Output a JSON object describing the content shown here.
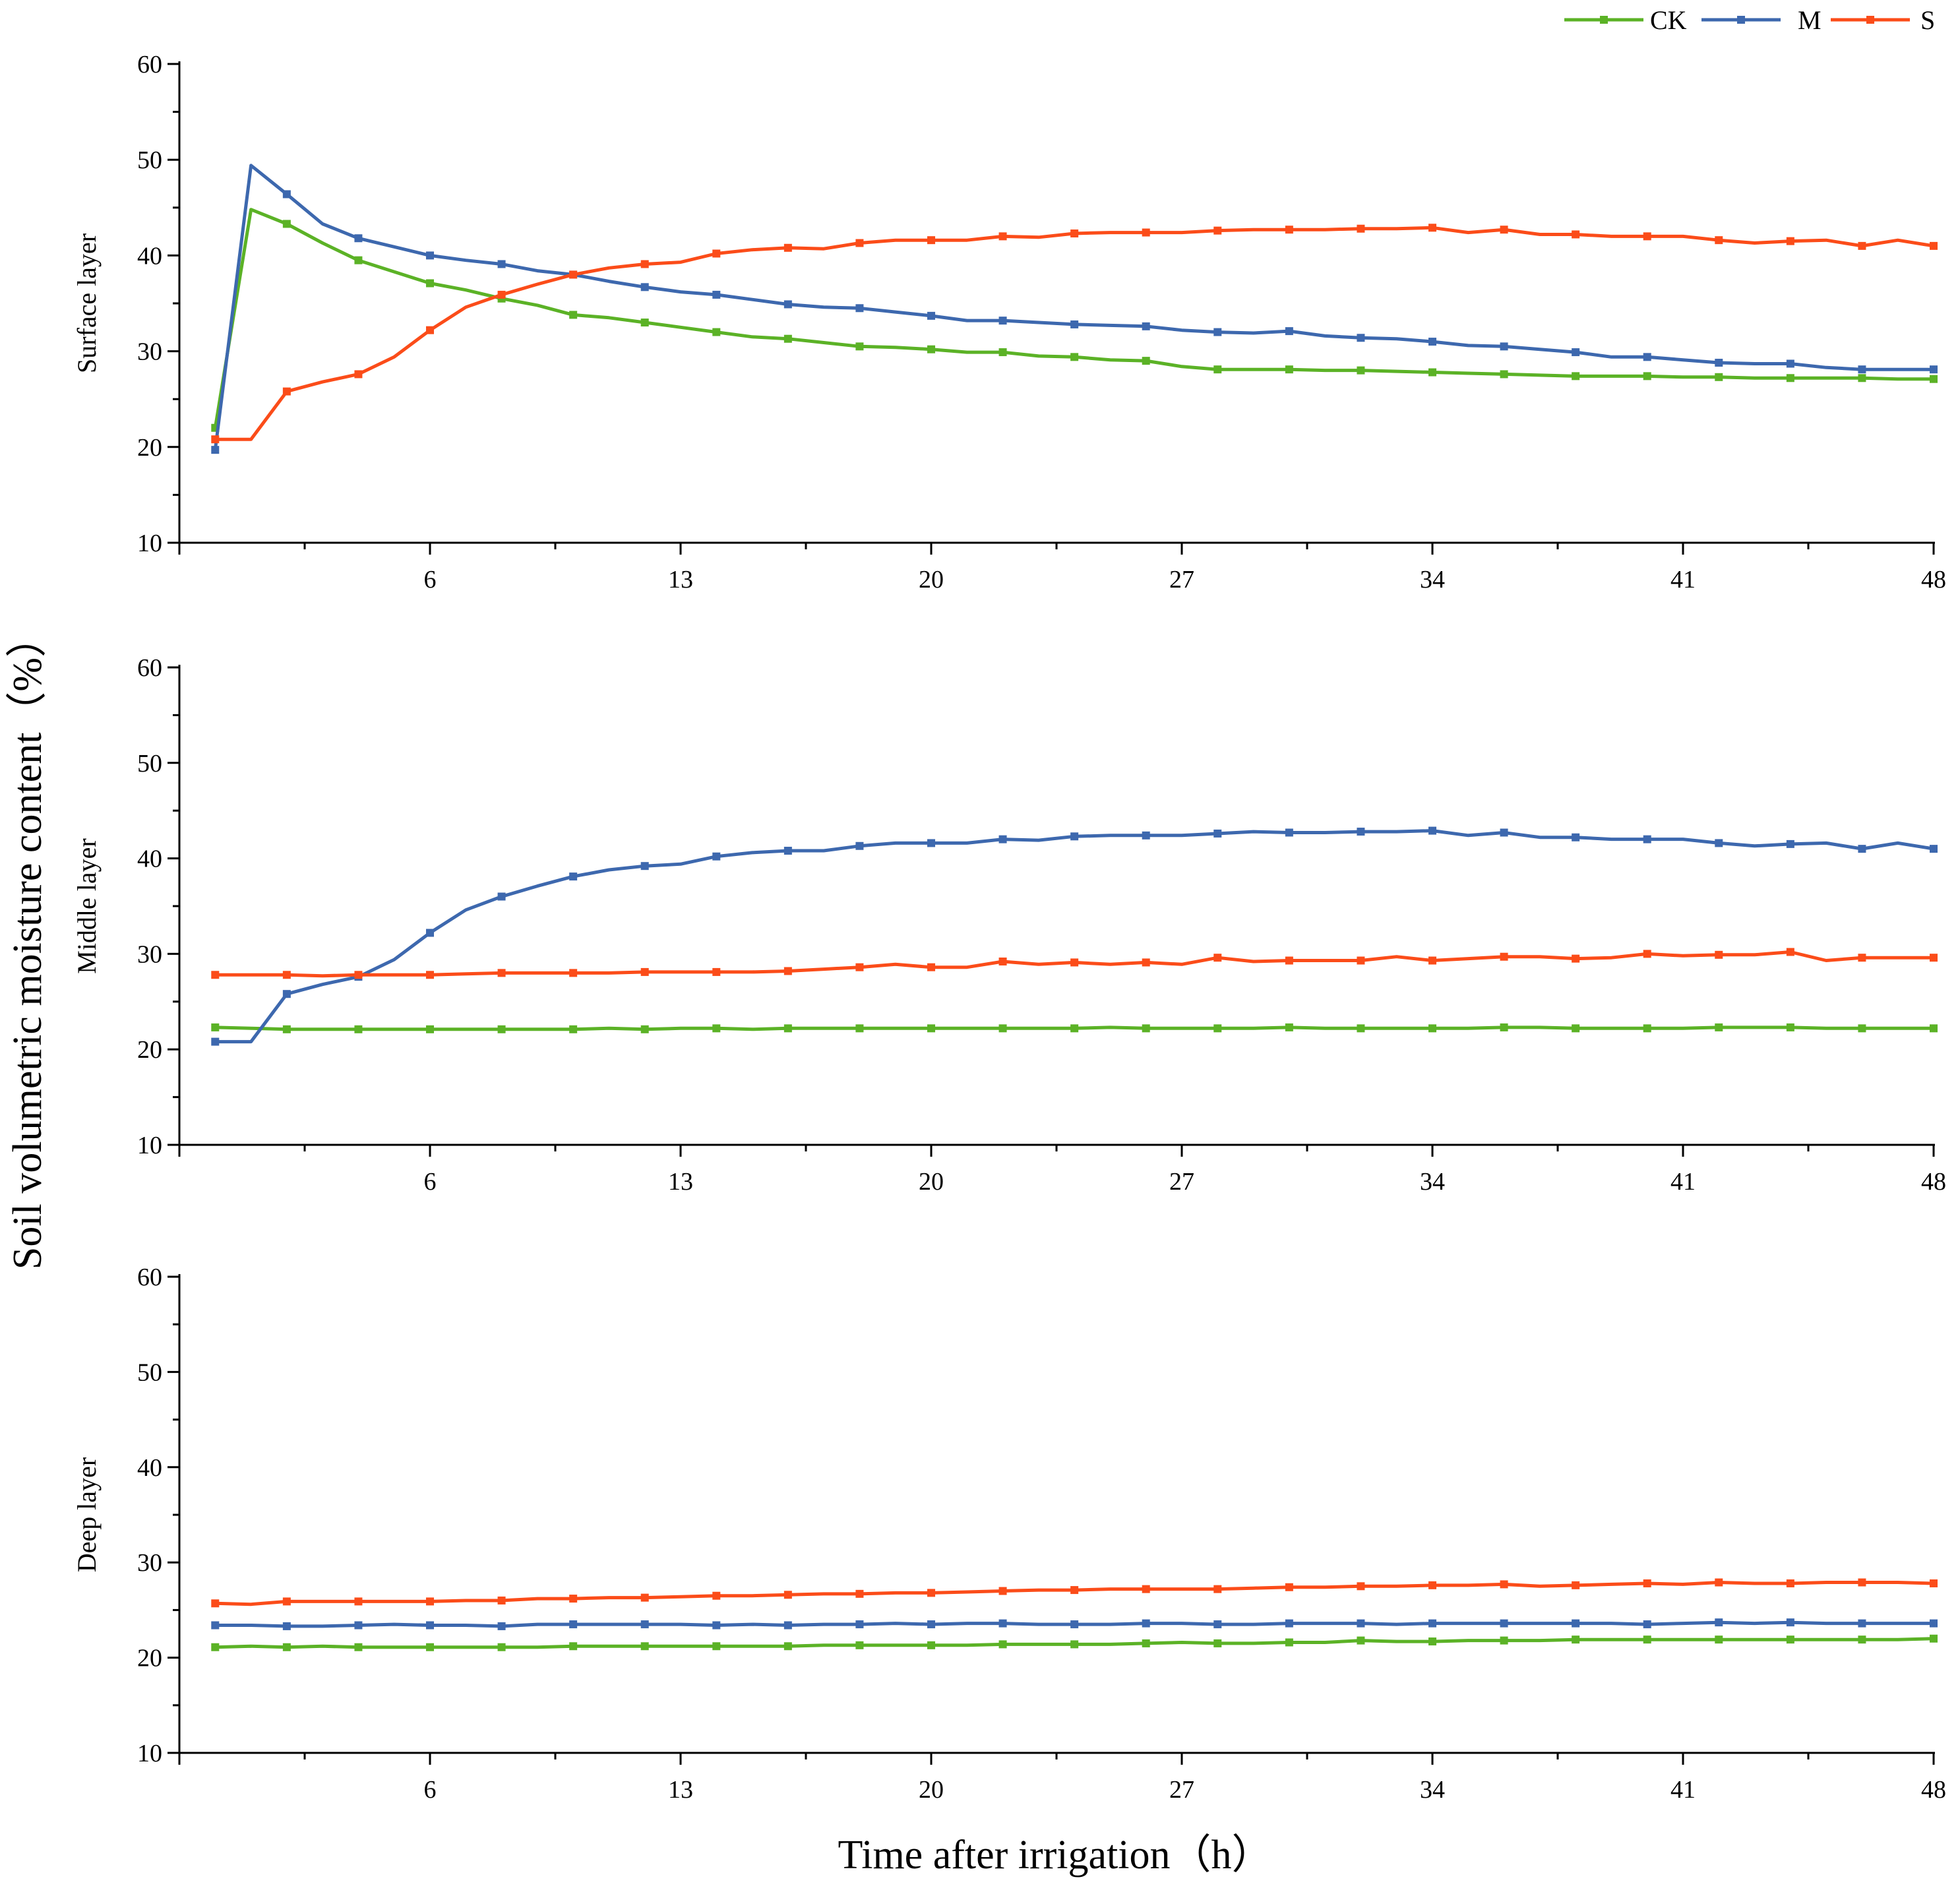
{
  "chart_data": {
    "type": "line",
    "ylabel": "Soil volumetric moisture content（%）",
    "xlabel": "Time after irrigation（h）",
    "x_ticks": [
      6,
      13,
      20,
      27,
      34,
      41,
      48
    ],
    "xlim": [
      -1,
      48
    ],
    "y_ticks": [
      10,
      20,
      30,
      40,
      50,
      60
    ],
    "ylim": [
      10,
      60
    ],
    "legend": {
      "placement": "top-right",
      "entries": [
        {
          "name": "CK",
          "color": "#5bb226"
        },
        {
          "name": "M",
          "color": "#3d68ae"
        },
        {
          "name": "S",
          "color": "#fb4c19"
        }
      ]
    },
    "x": [
      0,
      1,
      2,
      3,
      4,
      5,
      6,
      7,
      8,
      9,
      10,
      11,
      12,
      13,
      14,
      15,
      16,
      17,
      18,
      19,
      20,
      21,
      22,
      23,
      24,
      25,
      26,
      27,
      28,
      29,
      30,
      31,
      32,
      33,
      34,
      35,
      36,
      37,
      38,
      39,
      40,
      41,
      42,
      43,
      44,
      45,
      46,
      47,
      48
    ],
    "panels": [
      {
        "ylabel": "Surface layer",
        "series": [
          {
            "name": "CK",
            "color": "#5bb226",
            "values": [
              22.0,
              44.8,
              43.3,
              41.3,
              39.5,
              38.3,
              37.1,
              36.4,
              35.5,
              34.8,
              33.8,
              33.5,
              33.0,
              32.5,
              32.0,
              31.5,
              31.3,
              30.9,
              30.5,
              30.4,
              30.2,
              29.9,
              29.9,
              29.5,
              29.4,
              29.1,
              29.0,
              28.4,
              28.1,
              28.1,
              28.1,
              28.0,
              28.0,
              27.9,
              27.8,
              27.7,
              27.6,
              27.5,
              27.4,
              27.4,
              27.4,
              27.3,
              27.3,
              27.2,
              27.2,
              27.2,
              27.2,
              27.1,
              27.1
            ]
          },
          {
            "name": "M",
            "color": "#3d68ae",
            "values": [
              19.7,
              49.4,
              46.4,
              43.3,
              41.8,
              40.9,
              40.0,
              39.5,
              39.1,
              38.4,
              38.0,
              37.3,
              36.7,
              36.2,
              35.9,
              35.4,
              34.9,
              34.6,
              34.5,
              34.1,
              33.7,
              33.2,
              33.2,
              33.0,
              32.8,
              32.7,
              32.6,
              32.2,
              32.0,
              31.9,
              32.1,
              31.6,
              31.4,
              31.3,
              31.0,
              30.6,
              30.5,
              30.2,
              29.9,
              29.4,
              29.4,
              29.1,
              28.8,
              28.7,
              28.7,
              28.3,
              28.1,
              28.1,
              28.1
            ]
          },
          {
            "name": "S",
            "color": "#fb4c19",
            "values": [
              20.8,
              20.8,
              25.8,
              26.8,
              27.6,
              29.4,
              32.2,
              34.6,
              35.9,
              37.0,
              38.0,
              38.7,
              39.1,
              39.3,
              40.2,
              40.6,
              40.8,
              40.7,
              41.3,
              41.6,
              41.6,
              41.6,
              42.0,
              41.9,
              42.3,
              42.4,
              42.4,
              42.4,
              42.6,
              42.7,
              42.7,
              42.7,
              42.8,
              42.8,
              42.9,
              42.4,
              42.7,
              42.2,
              42.2,
              42.0,
              42.0,
              42.0,
              41.6,
              41.3,
              41.5,
              41.6,
              41.0,
              41.6,
              41.0
            ]
          }
        ]
      },
      {
        "ylabel": "Middle layer",
        "series": [
          {
            "name": "CK",
            "color": "#5bb226",
            "values": [
              22.3,
              22.2,
              22.1,
              22.1,
              22.1,
              22.1,
              22.1,
              22.1,
              22.1,
              22.1,
              22.1,
              22.2,
              22.1,
              22.2,
              22.2,
              22.1,
              22.2,
              22.2,
              22.2,
              22.2,
              22.2,
              22.2,
              22.2,
              22.2,
              22.2,
              22.3,
              22.2,
              22.2,
              22.2,
              22.2,
              22.3,
              22.2,
              22.2,
              22.2,
              22.2,
              22.2,
              22.3,
              22.3,
              22.2,
              22.2,
              22.2,
              22.2,
              22.3,
              22.3,
              22.3,
              22.2,
              22.2,
              22.2,
              22.2
            ]
          },
          {
            "name": "M",
            "color": "#3d68ae",
            "values": [
              20.8,
              20.8,
              25.8,
              26.8,
              27.6,
              29.4,
              32.2,
              34.6,
              36.0,
              37.1,
              38.1,
              38.8,
              39.2,
              39.4,
              40.2,
              40.6,
              40.8,
              40.8,
              41.3,
              41.6,
              41.6,
              41.6,
              42.0,
              41.9,
              42.3,
              42.4,
              42.4,
              42.4,
              42.6,
              42.8,
              42.7,
              42.7,
              42.8,
              42.8,
              42.9,
              42.4,
              42.7,
              42.2,
              42.2,
              42.0,
              42.0,
              42.0,
              41.6,
              41.3,
              41.5,
              41.6,
              41.0,
              41.6,
              41.0
            ]
          },
          {
            "name": "S",
            "color": "#fb4c19",
            "values": [
              27.8,
              27.8,
              27.8,
              27.7,
              27.8,
              27.8,
              27.8,
              27.9,
              28.0,
              28.0,
              28.0,
              28.0,
              28.1,
              28.1,
              28.1,
              28.1,
              28.2,
              28.4,
              28.6,
              28.9,
              28.6,
              28.6,
              29.2,
              28.9,
              29.1,
              28.9,
              29.1,
              28.9,
              29.6,
              29.2,
              29.3,
              29.3,
              29.3,
              29.7,
              29.3,
              29.5,
              29.7,
              29.7,
              29.5,
              29.6,
              30.0,
              29.8,
              29.9,
              29.9,
              30.2,
              29.3,
              29.6,
              29.6,
              29.6
            ]
          }
        ]
      },
      {
        "ylabel": "Deep layer",
        "series": [
          {
            "name": "CK",
            "color": "#5bb226",
            "values": [
              21.1,
              21.2,
              21.1,
              21.2,
              21.1,
              21.1,
              21.1,
              21.1,
              21.1,
              21.1,
              21.2,
              21.2,
              21.2,
              21.2,
              21.2,
              21.2,
              21.2,
              21.3,
              21.3,
              21.3,
              21.3,
              21.3,
              21.4,
              21.4,
              21.4,
              21.4,
              21.5,
              21.6,
              21.5,
              21.5,
              21.6,
              21.6,
              21.8,
              21.7,
              21.7,
              21.8,
              21.8,
              21.8,
              21.9,
              21.9,
              21.9,
              21.9,
              21.9,
              21.9,
              21.9,
              21.9,
              21.9,
              21.9,
              22.0
            ]
          },
          {
            "name": "M",
            "color": "#3d68ae",
            "values": [
              23.4,
              23.4,
              23.3,
              23.3,
              23.4,
              23.5,
              23.4,
              23.4,
              23.3,
              23.5,
              23.5,
              23.5,
              23.5,
              23.5,
              23.4,
              23.5,
              23.4,
              23.5,
              23.5,
              23.6,
              23.5,
              23.6,
              23.6,
              23.5,
              23.5,
              23.5,
              23.6,
              23.6,
              23.5,
              23.5,
              23.6,
              23.6,
              23.6,
              23.5,
              23.6,
              23.6,
              23.6,
              23.6,
              23.6,
              23.6,
              23.5,
              23.6,
              23.7,
              23.6,
              23.7,
              23.6,
              23.6,
              23.6,
              23.6
            ]
          },
          {
            "name": "S",
            "color": "#fb4c19",
            "values": [
              25.7,
              25.6,
              25.9,
              25.9,
              25.9,
              25.9,
              25.9,
              26.0,
              26.0,
              26.2,
              26.2,
              26.3,
              26.3,
              26.4,
              26.5,
              26.5,
              26.6,
              26.7,
              26.7,
              26.8,
              26.8,
              26.9,
              27.0,
              27.1,
              27.1,
              27.2,
              27.2,
              27.2,
              27.2,
              27.3,
              27.4,
              27.4,
              27.5,
              27.5,
              27.6,
              27.6,
              27.7,
              27.5,
              27.6,
              27.7,
              27.8,
              27.7,
              27.9,
              27.8,
              27.8,
              27.9,
              27.9,
              27.9,
              27.8
            ]
          }
        ]
      }
    ]
  }
}
